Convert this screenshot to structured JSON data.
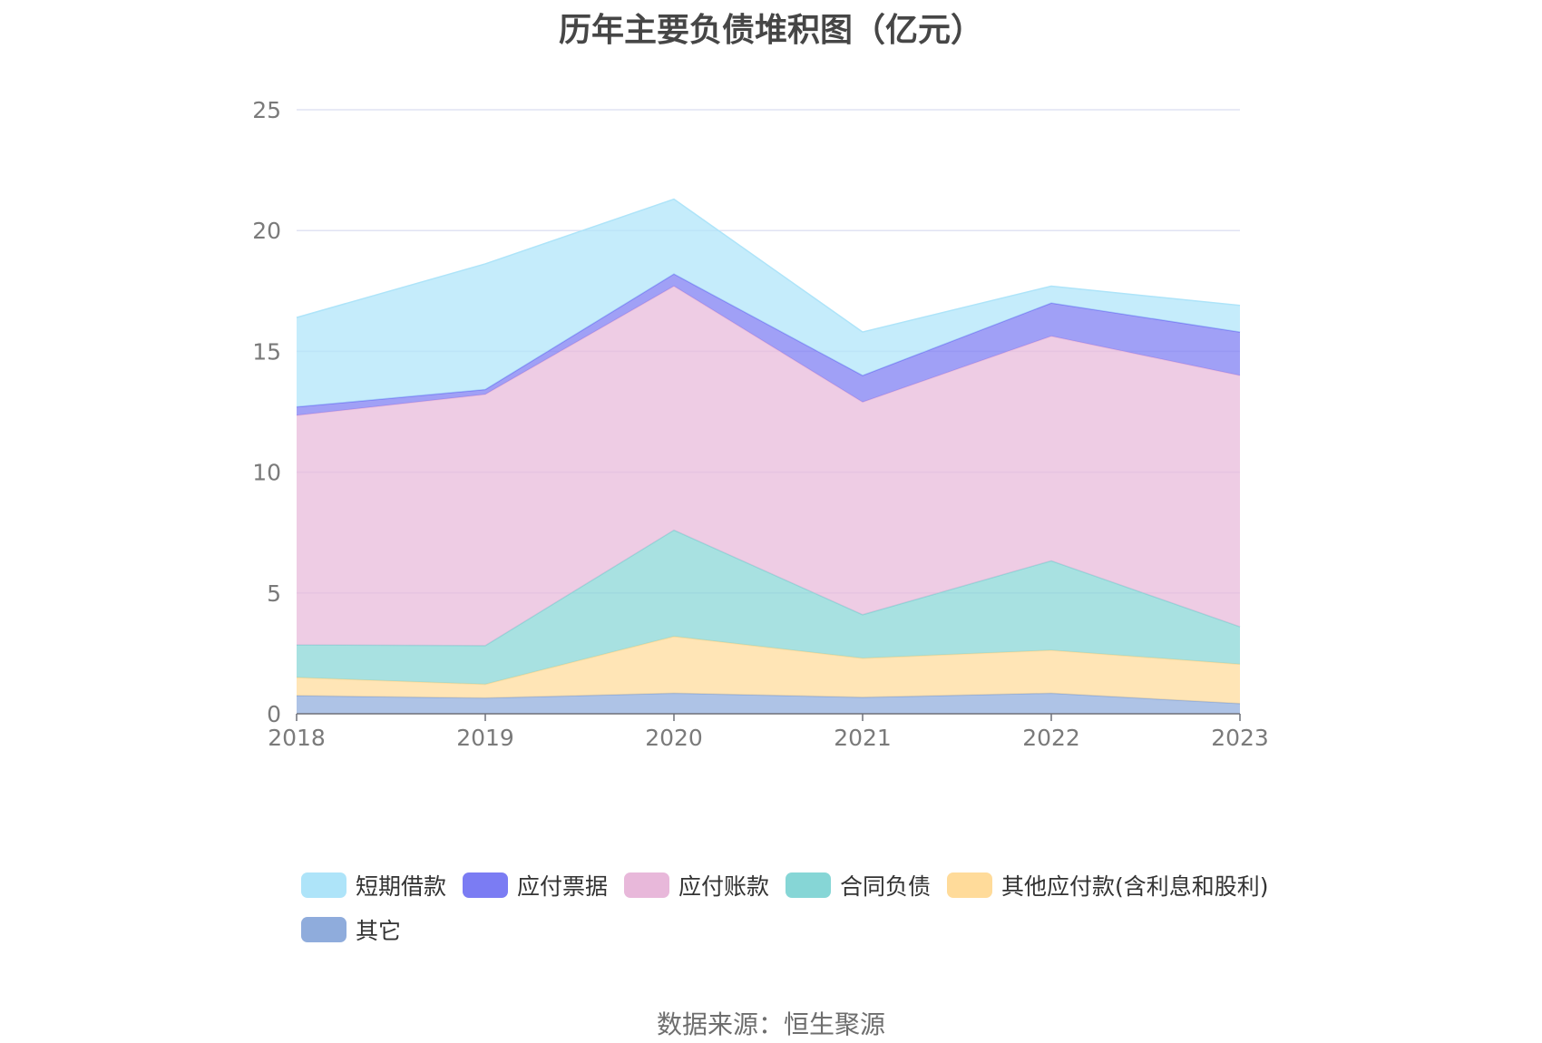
{
  "chart_data": {
    "type": "area",
    "stacked": true,
    "title": "历年主要负债堆积图（亿元）",
    "categories": [
      "2018",
      "2019",
      "2020",
      "2021",
      "2022",
      "2023"
    ],
    "ylim": [
      0,
      25
    ],
    "yticks": [
      0,
      5,
      10,
      15,
      20,
      25
    ],
    "grid": true,
    "legend_position": "bottom",
    "series": [
      {
        "name": "其它",
        "color": "#8facdc",
        "values": [
          0.75,
          0.65,
          0.85,
          0.68,
          0.85,
          0.42
        ]
      },
      {
        "name": "其他应付款(含利息和股利)",
        "color": "#ffdb9a",
        "values": [
          0.75,
          0.57,
          2.35,
          1.62,
          1.78,
          1.63
        ]
      },
      {
        "name": "合同负债",
        "color": "#86d6d6",
        "values": [
          1.35,
          1.6,
          4.4,
          1.8,
          3.7,
          1.55
        ]
      },
      {
        "name": "应付账款",
        "color": "#e8b8da",
        "values": [
          9.5,
          10.4,
          10.1,
          8.8,
          9.3,
          10.4
        ]
      },
      {
        "name": "应付票据",
        "color": "#7b7cf3",
        "values": [
          0.35,
          0.2,
          0.5,
          1.1,
          1.37,
          1.8
        ]
      },
      {
        "name": "短期借款",
        "color": "#aee4f9",
        "values": [
          3.7,
          5.2,
          3.1,
          1.8,
          0.7,
          1.1
        ]
      }
    ]
  },
  "legend_order": [
    "短期借款",
    "应付票据",
    "应付账款",
    "合同负债",
    "其他应付款(含利息和股利)",
    "其它"
  ],
  "source": "数据来源：恒生聚源"
}
